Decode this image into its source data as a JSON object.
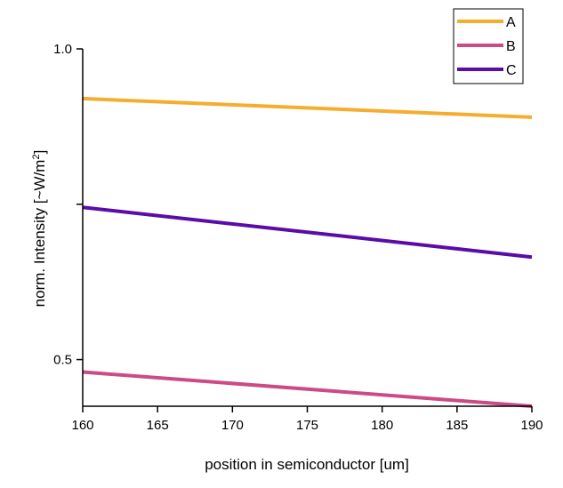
{
  "chart_data": {
    "type": "line",
    "xlabel": "position in semiconductor [um]",
    "ylabel_prefix": "norm. Intensity [~W/m",
    "ylabel_sup": "2",
    "ylabel_suffix": "]",
    "xlim": [
      160,
      190
    ],
    "ylim": [
      0.425,
      1.0
    ],
    "x_ticks": [
      160,
      165,
      170,
      175,
      180,
      185,
      190
    ],
    "x_tick_labels": [
      "160",
      "165",
      "170",
      "175",
      "180",
      "185",
      "190"
    ],
    "y_ticks": [
      0.5,
      0.75,
      1.0
    ],
    "y_tick_labels": [
      "0.5",
      "",
      "1.0"
    ],
    "legend_position": "top-right",
    "grid": false,
    "series": [
      {
        "name": "A",
        "color": "#f5ad2e",
        "x": [
          160,
          190
        ],
        "values": [
          0.92,
          0.89
        ]
      },
      {
        "name": "B",
        "color": "#cc4a86",
        "x": [
          160,
          190
        ],
        "values": [
          0.48,
          0.425
        ]
      },
      {
        "name": "C",
        "color": "#5a0ba8",
        "x": [
          160,
          190
        ],
        "values": [
          0.745,
          0.665
        ]
      }
    ]
  }
}
